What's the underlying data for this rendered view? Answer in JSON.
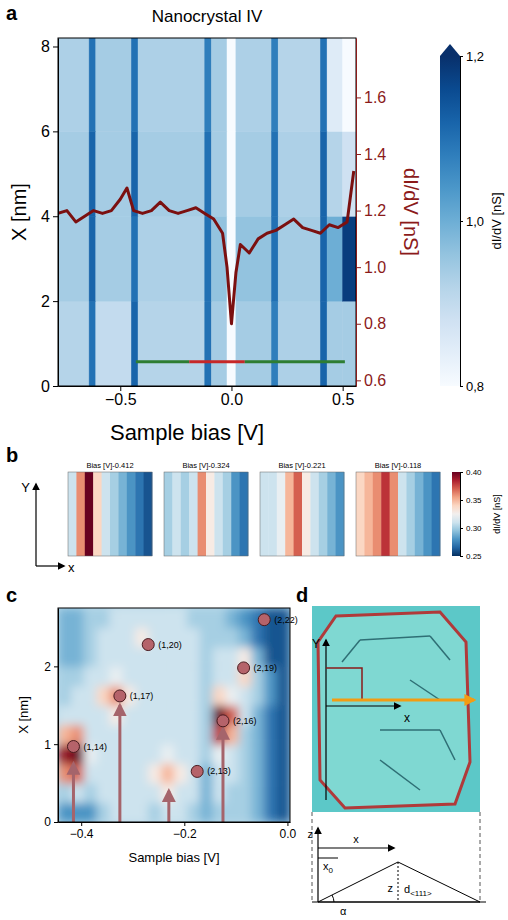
{
  "chart_data": [
    {
      "type": "heatmap",
      "panel": "a",
      "title": "Nanocrystal IV",
      "x_label": "Sample bias [V]",
      "y_label": "X [nm]",
      "y2_label": "dI/dV [nS]",
      "xlim": [
        -0.78,
        0.56
      ],
      "xticks": [
        {
          "value": -0.5,
          "label": "−0.5"
        },
        {
          "value": 0,
          "label": "0.0"
        },
        {
          "value": 0.5,
          "label": "0.5"
        }
      ],
      "ylim": [
        0,
        8.2
      ],
      "yticks": [
        0,
        2,
        4,
        6,
        8
      ],
      "y2lim": [
        0.58,
        1.81
      ],
      "y2ticks": [
        0.6,
        0.8,
        {
          "value": 1,
          "label": "1.0"
        },
        1.2,
        1.4,
        1.6
      ],
      "x_edges": [
        -0.78,
        -0.64,
        -0.61,
        -0.45,
        -0.42,
        -0.12,
        -0.09,
        -0.02,
        0.02,
        0.18,
        0.21,
        0.4,
        0.43,
        0.5,
        0.56
      ],
      "y_edges": [
        0,
        2,
        4,
        6,
        8.2
      ],
      "cells": [
        [
          0.92,
          1.1,
          0.9,
          1.12,
          0.92,
          1.1,
          0.94,
          0.8,
          0.94,
          1.08,
          0.93,
          1.12,
          0.94,
          0.94
        ],
        [
          0.94,
          1.12,
          0.94,
          1.1,
          0.93,
          1.1,
          0.96,
          0.8,
          0.96,
          1.1,
          0.94,
          1.12,
          1.0,
          1.18
        ],
        [
          0.94,
          1.12,
          0.94,
          1.12,
          0.94,
          1.1,
          0.94,
          0.8,
          0.94,
          1.1,
          0.93,
          1.12,
          0.92,
          0.88
        ],
        [
          0.93,
          1.1,
          0.94,
          1.1,
          0.93,
          1.08,
          0.94,
          0.8,
          0.93,
          1.08,
          0.92,
          1.1,
          0.85,
          0.8
        ]
      ],
      "colorbar": {
        "label": "dI/dV [nS]",
        "range": [
          0.8,
          1.2
        ],
        "ticks": [
          {
            "value": 0.8,
            "label": "0,8"
          },
          {
            "value": 1,
            "label": "1,0"
          },
          {
            "value": 1.2,
            "label": "1,2"
          }
        ]
      },
      "series": [
        {
          "type": "line",
          "axis": "y2",
          "color": "#7b1010",
          "x": [
            -0.78,
            -0.74,
            -0.7,
            -0.66,
            -0.62,
            -0.58,
            -0.54,
            -0.5,
            -0.47,
            -0.44,
            -0.4,
            -0.36,
            -0.32,
            -0.28,
            -0.24,
            -0.2,
            -0.16,
            -0.12,
            -0.08,
            -0.04,
            -0.02,
            0,
            0.02,
            0.04,
            0.08,
            0.12,
            0.16,
            0.2,
            0.24,
            0.28,
            0.32,
            0.36,
            0.4,
            0.44,
            0.48,
            0.52,
            0.55
          ],
          "values": [
            1.19,
            1.2,
            1.16,
            1.18,
            1.2,
            1.19,
            1.2,
            1.24,
            1.28,
            1.2,
            1.19,
            1.2,
            1.23,
            1.2,
            1.19,
            1.2,
            1.21,
            1.19,
            1.17,
            1.12,
            1.0,
            0.8,
            0.98,
            1.08,
            1.05,
            1.1,
            1.12,
            1.13,
            1.15,
            1.17,
            1.14,
            1.13,
            1.12,
            1.15,
            1.14,
            1.16,
            1.34
          ]
        }
      ],
      "annotations": [
        {
          "x": [
            -0.43,
            -0.19
          ],
          "y": 0.57,
          "color": "#2e7d32"
        },
        {
          "x": [
            -0.19,
            0.06
          ],
          "y": 0.57,
          "color": "#c62828"
        },
        {
          "x": [
            0.06,
            0.51
          ],
          "y": 0.57,
          "color": "#2e7d32"
        }
      ]
    },
    {
      "type": "heatmap",
      "panel": "b",
      "x_label": "x",
      "y_label": "Y",
      "tick_labels": false,
      "maps": [
        {
          "title": "Bias [V]-0.412",
          "values": [
            0.31,
            0.36,
            0.4,
            0.34,
            0.31,
            0.3,
            0.29,
            0.28,
            0.27,
            0.26
          ]
        },
        {
          "title": "Bias [V]-0.324",
          "values": [
            0.3,
            0.31,
            0.3,
            0.31,
            0.36,
            0.33,
            0.31,
            0.3,
            0.28,
            0.27
          ]
        },
        {
          "title": "Bias [V]-0.221",
          "values": [
            0.31,
            0.31,
            0.32,
            0.35,
            0.37,
            0.33,
            0.31,
            0.3,
            0.29,
            0.28
          ]
        },
        {
          "title": "Bias [V]-0.118",
          "values": [
            0.34,
            0.35,
            0.36,
            0.38,
            0.36,
            0.31,
            0.3,
            0.29,
            0.28,
            0.27
          ]
        }
      ],
      "colorbar": {
        "label": "dI/dV [nS]",
        "range": [
          0.25,
          0.4
        ],
        "ticks": [
          0.25,
          {
            "value": 0.3,
            "label": "0.30"
          },
          0.35,
          {
            "value": 0.4,
            "label": "0.40"
          }
        ]
      }
    },
    {
      "type": "heatmap",
      "panel": "c",
      "x_label": "Sample bias [V]",
      "y_label": "X [nm]",
      "xlim": [
        -0.445,
        0.005
      ],
      "xticks": [
        {
          "value": -0.4,
          "label": "−0.4"
        },
        {
          "value": -0.2,
          "label": "−0.2"
        },
        {
          "value": 0,
          "label": "0.0"
        }
      ],
      "ylim": [
        0,
        2.75
      ],
      "yticks": [
        0,
        1,
        2
      ],
      "zlim": [
        0.25,
        0.4
      ],
      "x_edges": [
        -0.445,
        -0.42,
        -0.395,
        -0.37,
        -0.345,
        -0.32,
        -0.295,
        -0.27,
        -0.245,
        -0.22,
        -0.195,
        -0.17,
        -0.145,
        -0.12,
        -0.095,
        -0.07,
        -0.045,
        -0.02,
        0.005
      ],
      "y_edges": [
        0,
        0.25,
        0.5,
        0.75,
        1,
        1.25,
        1.5,
        1.75,
        2,
        2.25,
        2.5,
        2.75
      ],
      "cells": [
        [
          0.28,
          0.28,
          0.28,
          0.3,
          0.31,
          0.31,
          0.31,
          0.3,
          0.31,
          0.31,
          0.3,
          0.29,
          0.3,
          0.3,
          0.3,
          0.29,
          0.27,
          0.26
        ],
        [
          0.3,
          0.31,
          0.3,
          0.31,
          0.31,
          0.31,
          0.31,
          0.31,
          0.33,
          0.31,
          0.31,
          0.29,
          0.31,
          0.3,
          0.3,
          0.29,
          0.27,
          0.26
        ],
        [
          0.36,
          0.37,
          0.31,
          0.31,
          0.31,
          0.31,
          0.31,
          0.33,
          0.35,
          0.33,
          0.31,
          0.29,
          0.31,
          0.31,
          0.3,
          0.29,
          0.27,
          0.26
        ],
        [
          0.39,
          0.4,
          0.32,
          0.31,
          0.31,
          0.31,
          0.31,
          0.31,
          0.32,
          0.31,
          0.31,
          0.3,
          0.32,
          0.31,
          0.3,
          0.29,
          0.27,
          0.26
        ],
        [
          0.35,
          0.36,
          0.31,
          0.31,
          0.31,
          0.31,
          0.31,
          0.31,
          0.31,
          0.31,
          0.31,
          0.3,
          0.38,
          0.35,
          0.3,
          0.29,
          0.27,
          0.26
        ],
        [
          0.31,
          0.31,
          0.31,
          0.31,
          0.33,
          0.31,
          0.31,
          0.31,
          0.31,
          0.31,
          0.31,
          0.3,
          0.4,
          0.37,
          0.31,
          0.29,
          0.27,
          0.26
        ],
        [
          0.3,
          0.31,
          0.31,
          0.34,
          0.36,
          0.33,
          0.31,
          0.31,
          0.31,
          0.31,
          0.31,
          0.3,
          0.34,
          0.32,
          0.31,
          0.3,
          0.28,
          0.26
        ],
        [
          0.3,
          0.3,
          0.31,
          0.31,
          0.32,
          0.31,
          0.31,
          0.31,
          0.31,
          0.31,
          0.31,
          0.3,
          0.31,
          0.31,
          0.34,
          0.3,
          0.28,
          0.26
        ],
        [
          0.29,
          0.29,
          0.3,
          0.31,
          0.31,
          0.31,
          0.31,
          0.31,
          0.31,
          0.31,
          0.31,
          0.3,
          0.31,
          0.31,
          0.33,
          0.29,
          0.26,
          0.26
        ],
        [
          0.29,
          0.29,
          0.3,
          0.31,
          0.31,
          0.31,
          0.33,
          0.31,
          0.31,
          0.31,
          0.31,
          0.3,
          0.3,
          0.3,
          0.29,
          0.27,
          0.26,
          0.26
        ],
        [
          0.29,
          0.29,
          0.3,
          0.3,
          0.31,
          0.31,
          0.31,
          0.31,
          0.31,
          0.31,
          0.3,
          0.3,
          0.3,
          0.29,
          0.28,
          0.27,
          0.26,
          0.26
        ]
      ],
      "series": [
        {
          "type": "scatter",
          "color": "#b5636a",
          "x": [
            -0.415,
            -0.325,
            -0.27,
            -0.175,
            -0.125,
            -0.085,
            -0.045
          ],
          "values": [
            0.97,
            1.62,
            2.28,
            0.65,
            1.3,
            1.98,
            2.6
          ],
          "labels": [
            "(1,14)",
            "(1,17)",
            "(1,20)",
            "(2,13)",
            "(2,16)",
            "(2,19)",
            "(2,22)"
          ]
        }
      ],
      "arrows": {
        "color": "#a5646b",
        "x": [
          -0.415,
          -0.325,
          -0.23,
          -0.125
        ],
        "y_end": [
          0.75,
          1.5,
          0.4,
          1.2
        ]
      }
    },
    {
      "type": "diagram",
      "panel": "d",
      "image_labels": [
        "Y",
        "x"
      ],
      "schematic_labels": [
        {
          "text": "z"
        },
        {
          "text": "x"
        },
        {
          "text": "x",
          "sub": "0"
        },
        {
          "text": "z"
        },
        {
          "text": "d",
          "sub": "<111>"
        },
        {
          "text": "α"
        }
      ]
    }
  ]
}
